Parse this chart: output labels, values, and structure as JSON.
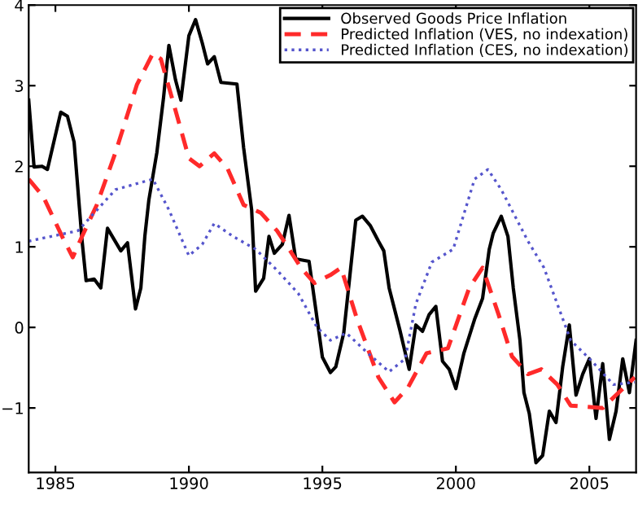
{
  "chart_data": {
    "type": "line",
    "xlim": [
      1984,
      2006.75
    ],
    "ylim": [
      -1.8,
      4
    ],
    "xticks": [
      1985,
      1990,
      1995,
      2000,
      2005
    ],
    "yticks": [
      -1,
      0,
      1,
      2,
      3,
      4
    ],
    "grid": false,
    "legend": "top right",
    "marker": "none",
    "series": [
      {
        "name": "Observed Goods Price Inflation",
        "color": "#000000",
        "line_style": "solid",
        "x": [
          1984.0,
          1984.2,
          1984.5,
          1984.7,
          1985.2,
          1985.45,
          1985.7,
          1986.0,
          1986.15,
          1986.45,
          1986.7,
          1986.95,
          1987.45,
          1987.7,
          1988.0,
          1988.2,
          1988.35,
          1988.5,
          1988.8,
          1989.05,
          1989.25,
          1989.5,
          1989.7,
          1990.0,
          1990.25,
          1990.5,
          1990.7,
          1990.95,
          1991.2,
          1991.8,
          1992.05,
          1992.35,
          1992.5,
          1992.8,
          1993.0,
          1993.2,
          1993.5,
          1993.75,
          1994.0,
          1994.5,
          1994.75,
          1995.0,
          1995.3,
          1995.5,
          1995.8,
          1996.0,
          1996.25,
          1996.5,
          1996.8,
          1997.1,
          1997.3,
          1997.5,
          1997.9,
          1998.25,
          1998.5,
          1998.75,
          1999.0,
          1999.25,
          1999.5,
          1999.75,
          2000.0,
          2000.3,
          2000.7,
          2001.0,
          2001.25,
          2001.4,
          2001.7,
          2001.95,
          2002.15,
          2002.4,
          2002.55,
          2002.75,
          2003.0,
          2003.25,
          2003.5,
          2003.75,
          2004.0,
          2004.25,
          2004.5,
          2004.75,
          2005.0,
          2005.25,
          2005.5,
          2005.75,
          2006.0,
          2006.25,
          2006.5,
          2006.75
        ],
        "values": [
          2.82,
          1.99,
          2.0,
          1.96,
          2.67,
          2.62,
          2.3,
          1.07,
          0.58,
          0.6,
          0.49,
          1.23,
          0.95,
          1.05,
          0.23,
          0.49,
          1.13,
          1.58,
          2.17,
          2.85,
          3.5,
          3.07,
          2.82,
          3.62,
          3.82,
          3.53,
          3.27,
          3.36,
          3.04,
          3.02,
          2.23,
          1.46,
          0.45,
          0.61,
          1.13,
          0.92,
          1.03,
          1.39,
          0.85,
          0.82,
          0.23,
          -0.37,
          -0.56,
          -0.49,
          -0.07,
          0.55,
          1.33,
          1.38,
          1.26,
          1.07,
          0.95,
          0.49,
          -0.03,
          -0.52,
          0.03,
          -0.05,
          0.16,
          0.26,
          -0.42,
          -0.52,
          -0.76,
          -0.32,
          0.1,
          0.36,
          0.97,
          1.17,
          1.38,
          1.13,
          0.49,
          -0.16,
          -0.81,
          -1.07,
          -1.68,
          -1.59,
          -1.04,
          -1.18,
          -0.49,
          0.03,
          -0.84,
          -0.58,
          -0.39,
          -1.13,
          -0.45,
          -1.39,
          -1.04,
          -0.39,
          -0.81,
          -0.16
        ]
      },
      {
        "name": "Predicted Inflation (VES, no indexation)",
        "color": "#ff2a2a",
        "line_style": "dashed",
        "x": [
          1984.0,
          1984.55,
          1985.25,
          1985.65,
          1986.0,
          1986.55,
          1987.25,
          1988.05,
          1988.65,
          1988.95,
          1989.45,
          1990.0,
          1990.4,
          1990.95,
          1991.45,
          1992.05,
          1992.7,
          1993.3,
          1993.7,
          1994.2,
          1994.7,
          1995.3,
          1995.7,
          1996.3,
          1997.1,
          1997.7,
          1998.2,
          1998.9,
          1999.7,
          2000.5,
          2001.0,
          2001.6,
          2002.1,
          2002.7,
          2003.2,
          2003.8,
          2004.3,
          2005.5,
          2006.0,
          2006.7
        ],
        "values": [
          1.84,
          1.62,
          1.13,
          0.87,
          1.13,
          1.52,
          2.17,
          3.01,
          3.4,
          3.33,
          2.75,
          2.1,
          2.0,
          2.16,
          1.97,
          1.52,
          1.42,
          1.2,
          1.0,
          0.74,
          0.55,
          0.65,
          0.74,
          0.1,
          -0.62,
          -0.93,
          -0.75,
          -0.32,
          -0.26,
          0.49,
          0.74,
          0.16,
          -0.36,
          -0.58,
          -0.52,
          -0.71,
          -0.97,
          -1.0,
          -0.84,
          -0.62
        ]
      },
      {
        "name": "Predicted Inflation (CES, no indexation)",
        "color": "#5555cc",
        "line_style": "dotted",
        "x": [
          1984.0,
          1984.85,
          1985.85,
          1987.25,
          1988.65,
          1989.25,
          1990.0,
          1990.5,
          1990.95,
          1991.65,
          1992.5,
          1993.3,
          1994.1,
          1994.8,
          1995.3,
          1995.9,
          1996.7,
          1997.5,
          1998.1,
          1998.5,
          1999.1,
          1999.9,
          2000.7,
          2001.2,
          2001.7,
          2002.7,
          2003.3,
          2004.3,
          2005.1,
          2005.9,
          2006.7
        ],
        "values": [
          1.07,
          1.13,
          1.2,
          1.71,
          1.84,
          1.46,
          0.89,
          1.03,
          1.29,
          1.13,
          0.97,
          0.71,
          0.42,
          0.0,
          -0.16,
          -0.07,
          -0.32,
          -0.55,
          -0.39,
          0.29,
          0.81,
          0.97,
          1.84,
          1.96,
          1.71,
          1.07,
          0.74,
          -0.16,
          -0.42,
          -0.71,
          -0.68
        ]
      }
    ]
  }
}
